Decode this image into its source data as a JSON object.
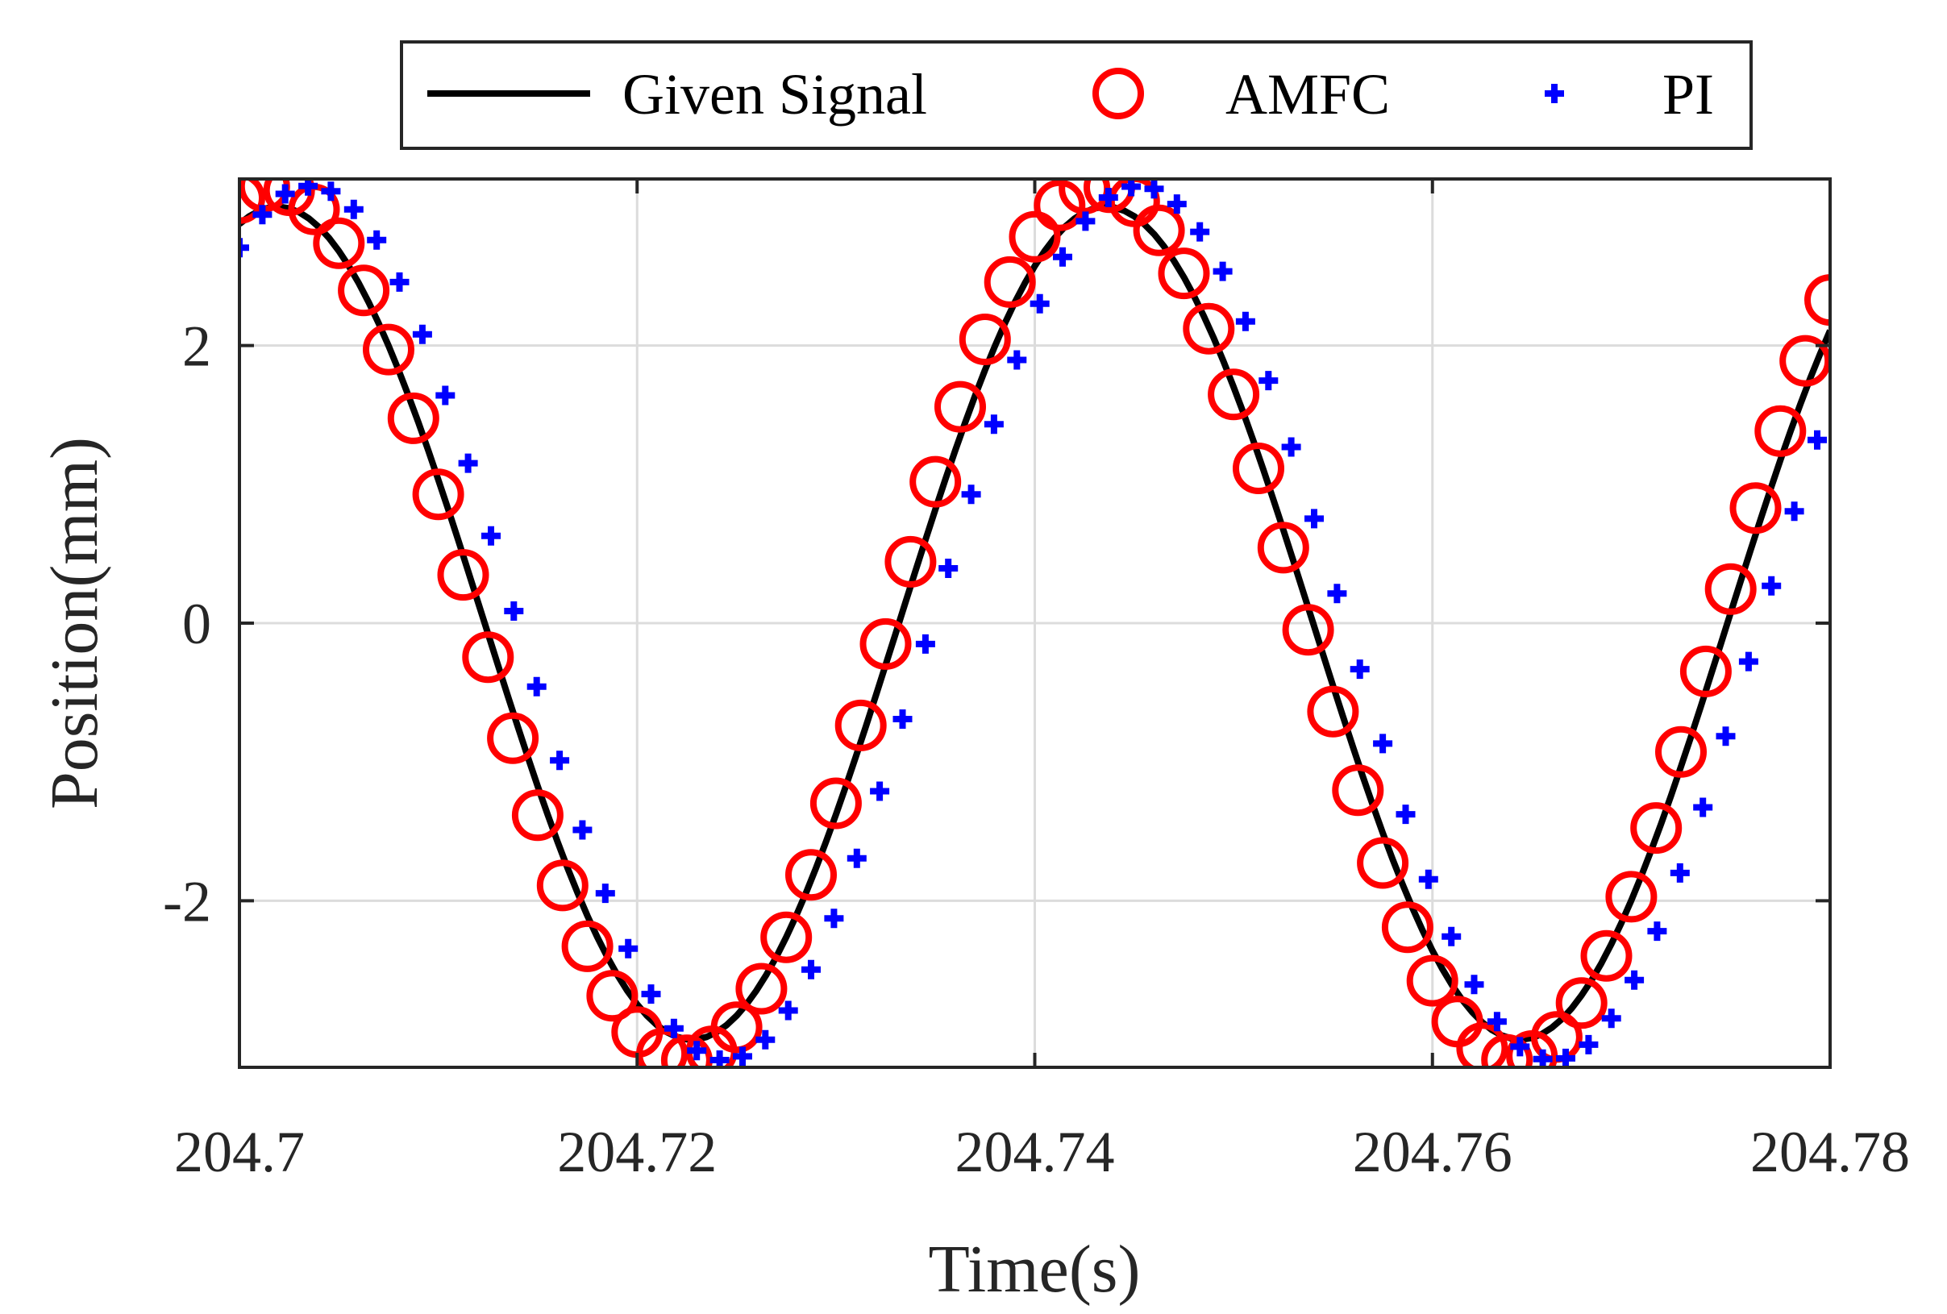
{
  "chart_data": {
    "type": "line",
    "xlabel": "Time(s)",
    "ylabel": "Position(mm)",
    "xlim": [
      204.7,
      204.78
    ],
    "ylim": [
      -3.2,
      3.2
    ],
    "x_ticks": [
      204.7,
      204.72,
      204.74,
      204.76,
      204.78
    ],
    "x_tick_labels": [
      "204.7",
      "204.72",
      "204.74",
      "204.76",
      "204.78"
    ],
    "y_ticks": [
      -2,
      0,
      2
    ],
    "y_tick_labels": [
      "-2",
      "0",
      "2"
    ],
    "grid": true,
    "legend_position": "top, above plot",
    "series": [
      {
        "name": "Given Signal",
        "style": "line",
        "color": "#000000",
        "amplitude": 3,
        "frequency_hz": 24,
        "t0": 204.6915,
        "sample_step": 0.0005
      },
      {
        "name": "AMFC",
        "style": "circle-marker",
        "color": "#ff0000",
        "amplitude": 3.15,
        "frequency_hz": 24,
        "t0": 204.69115,
        "sample_step": 0.00125
      },
      {
        "name": "PI",
        "style": "plus-marker",
        "color": "#0000ff",
        "amplitude": 3.15,
        "frequency_hz": 24,
        "t0": 204.69315,
        "sample_step": 0.00115
      }
    ]
  },
  "colors": {
    "grid": "#dcdcdc",
    "axes": "#262626",
    "given": "#000000",
    "amfc": "#ff0000",
    "pi": "#0000ff"
  }
}
